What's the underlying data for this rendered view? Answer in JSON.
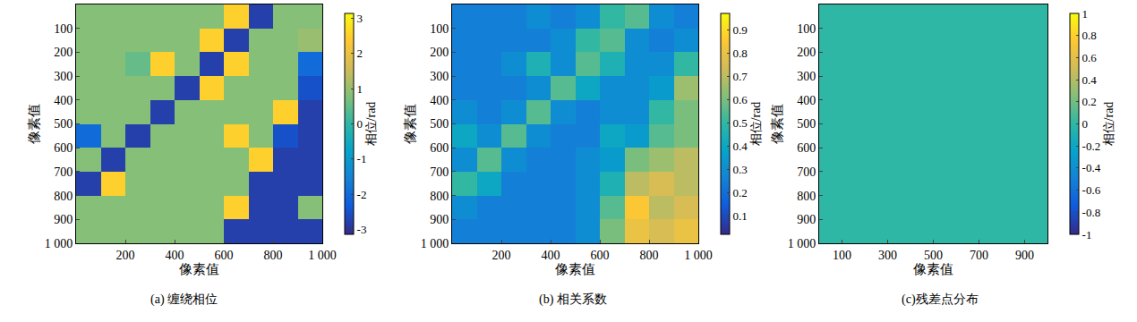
{
  "chart_data": [
    {
      "type": "heatmap",
      "title": "(a) 缠绕相位",
      "xlabel": "像素值",
      "ylabel": "像素值",
      "x": [
        50,
        150,
        250,
        350,
        450,
        550,
        650,
        750,
        850,
        950
      ],
      "y": [
        50,
        150,
        250,
        350,
        450,
        550,
        650,
        750,
        850,
        950
      ],
      "cells": [
        [
          0.8,
          0.8,
          0.8,
          0.8,
          0.8,
          0.8,
          2.5,
          -2.8,
          0.8,
          0.8
        ],
        [
          0.8,
          0.8,
          0.8,
          0.8,
          0.8,
          2.5,
          -2.8,
          0.8,
          0.8,
          1.0
        ],
        [
          0.8,
          0.8,
          0.5,
          2.5,
          0.8,
          -2.8,
          2.5,
          0.8,
          0.8,
          -2.0
        ],
        [
          0.8,
          0.8,
          0.8,
          0.8,
          -2.8,
          2.5,
          0.8,
          0.8,
          0.8,
          -2.5
        ],
        [
          0.8,
          0.8,
          0.8,
          -2.8,
          0.8,
          0.8,
          0.8,
          0.8,
          2.5,
          -2.8
        ],
        [
          -2.0,
          0.8,
          -2.8,
          0.8,
          0.8,
          0.8,
          2.5,
          0.8,
          -2.5,
          -2.8
        ],
        [
          0.8,
          -2.8,
          0.8,
          0.8,
          0.8,
          0.8,
          0.8,
          2.5,
          -2.8,
          -2.8
        ],
        [
          -2.8,
          2.5,
          0.8,
          0.8,
          0.8,
          0.8,
          0.8,
          -2.8,
          -2.8,
          -2.8
        ],
        [
          0.8,
          0.8,
          0.8,
          0.8,
          0.8,
          0.8,
          2.5,
          -2.8,
          -2.8,
          0.8
        ],
        [
          0.8,
          0.8,
          0.8,
          0.8,
          0.8,
          0.8,
          -2.8,
          -2.8,
          -2.8,
          -2.8
        ]
      ],
      "xlim": [
        0,
        1000
      ],
      "ylim": [
        1000,
        0
      ],
      "xticks": [
        200,
        400,
        600,
        800,
        {
          "value": 1000,
          "label": "1 000"
        }
      ],
      "yticks": [
        100,
        200,
        300,
        400,
        500,
        600,
        700,
        800,
        900,
        {
          "value": 1000,
          "label": "1 000"
        }
      ],
      "colorbar": {
        "title": "相位/rad",
        "range": [
          -3.14,
          3.14
        ],
        "ticks": [
          -3,
          -2,
          -1,
          0,
          1,
          2,
          3
        ]
      }
    },
    {
      "type": "heatmap",
      "title": "(b) 相关系数",
      "xlabel": "像素值",
      "ylabel": "像素值",
      "x": [
        50,
        150,
        250,
        350,
        450,
        550,
        650,
        750,
        850,
        950
      ],
      "y": [
        50,
        150,
        250,
        350,
        450,
        550,
        650,
        750,
        850,
        950
      ],
      "cells": [
        [
          0.25,
          0.25,
          0.25,
          0.3,
          0.25,
          0.3,
          0.5,
          0.55,
          0.3,
          0.25
        ],
        [
          0.25,
          0.25,
          0.25,
          0.25,
          0.3,
          0.5,
          0.55,
          0.3,
          0.25,
          0.3
        ],
        [
          0.25,
          0.25,
          0.3,
          0.45,
          0.3,
          0.55,
          0.45,
          0.3,
          0.3,
          0.5
        ],
        [
          0.25,
          0.25,
          0.25,
          0.3,
          0.55,
          0.4,
          0.3,
          0.3,
          0.35,
          0.65
        ],
        [
          0.3,
          0.25,
          0.3,
          0.55,
          0.3,
          0.25,
          0.3,
          0.3,
          0.5,
          0.6
        ],
        [
          0.4,
          0.3,
          0.55,
          0.3,
          0.25,
          0.25,
          0.4,
          0.35,
          0.55,
          0.6
        ],
        [
          0.3,
          0.55,
          0.3,
          0.25,
          0.25,
          0.3,
          0.35,
          0.6,
          0.65,
          0.7
        ],
        [
          0.5,
          0.4,
          0.25,
          0.25,
          0.25,
          0.3,
          0.45,
          0.7,
          0.75,
          0.7
        ],
        [
          0.3,
          0.25,
          0.25,
          0.25,
          0.25,
          0.3,
          0.55,
          0.85,
          0.7,
          0.75
        ],
        [
          0.25,
          0.25,
          0.25,
          0.25,
          0.25,
          0.3,
          0.6,
          0.8,
          0.75,
          0.8
        ]
      ],
      "xlim": [
        0,
        1000
      ],
      "ylim": [
        1000,
        0
      ],
      "xticks": [
        200,
        400,
        600,
        800,
        {
          "value": 1000,
          "label": "1 000"
        }
      ],
      "yticks": [
        100,
        200,
        300,
        400,
        500,
        600,
        700,
        800,
        900,
        {
          "value": 1000,
          "label": "1 000"
        }
      ],
      "colorbar": {
        "title": "相位/rad",
        "range": [
          0.02,
          0.97
        ],
        "ticks": [
          0.1,
          0.2,
          0.3,
          0.4,
          0.5,
          0.6,
          0.7,
          0.8,
          0.9
        ]
      }
    },
    {
      "type": "heatmap",
      "title": "(c)残差点分布",
      "xlabel": "像素值",
      "ylabel": "像素值",
      "x": [
        100,
        300,
        500,
        700,
        900
      ],
      "y": [
        100,
        300,
        500,
        700,
        900
      ],
      "cells": [
        [
          0,
          0,
          0,
          0,
          0
        ],
        [
          0,
          0,
          0,
          0,
          0
        ],
        [
          0,
          0,
          0,
          0,
          0
        ],
        [
          0,
          0,
          0,
          0,
          0
        ],
        [
          0,
          0,
          0,
          0,
          0
        ]
      ],
      "xlim": [
        0,
        1000
      ],
      "ylim": [
        1000,
        0
      ],
      "xticks": [
        100,
        300,
        500,
        700,
        900
      ],
      "yticks": [
        100,
        200,
        300,
        400,
        500,
        600,
        700,
        800,
        900,
        {
          "value": 1000,
          "label": "1 000"
        }
      ],
      "colorbar": {
        "title": "相位/rad",
        "range": [
          -1,
          1
        ],
        "ticks": [
          -1,
          -0.8,
          -0.6,
          -0.4,
          -0.2,
          0,
          0.2,
          0.4,
          0.6,
          0.8,
          1
        ]
      }
    }
  ]
}
